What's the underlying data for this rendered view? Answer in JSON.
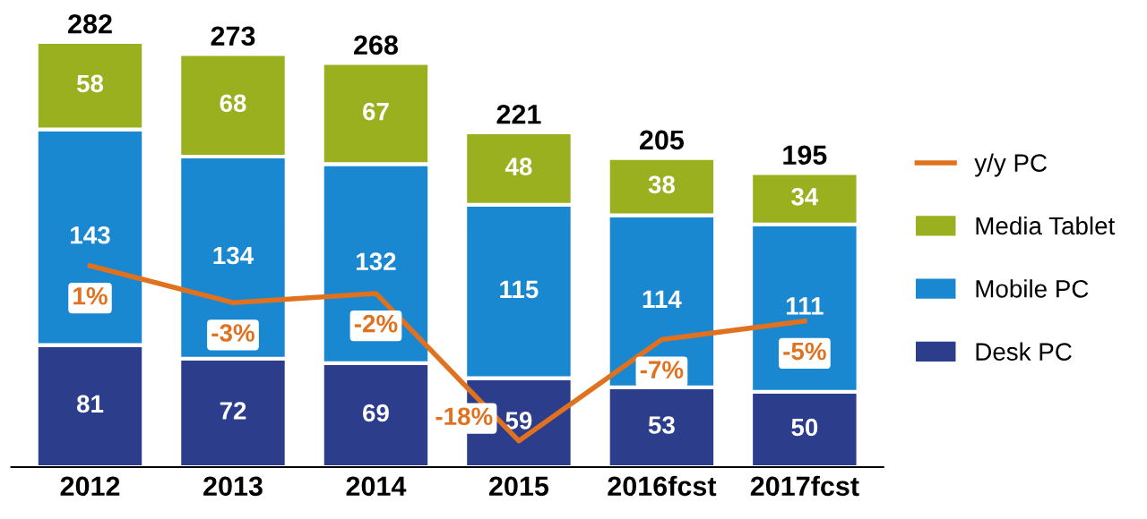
{
  "chart_data": {
    "type": "bar",
    "stacked": true,
    "categories": [
      "2012",
      "2013",
      "2014",
      "2015",
      "2016fcst",
      "2017fcst"
    ],
    "series": [
      {
        "name": "Desk PC",
        "color": "#2b3d8b",
        "values": [
          81,
          72,
          69,
          59,
          53,
          50
        ]
      },
      {
        "name": "Mobile PC",
        "color": "#1a88d0",
        "values": [
          143,
          134,
          132,
          115,
          114,
          111
        ]
      },
      {
        "name": "Media Tablet",
        "color": "#9bb01f",
        "values": [
          58,
          68,
          67,
          48,
          38,
          34
        ]
      },
      {
        "name": "y/y PC",
        "type": "line",
        "axis": "y2",
        "color": "#e0711f",
        "values": [
          1,
          -3,
          -2,
          -18,
          -7,
          -5
        ],
        "value_labels": [
          "1%",
          "-3%",
          "-2%",
          "-18%",
          "-7%",
          "-5%"
        ]
      }
    ],
    "totals": [
      "282",
      "273",
      "268",
      "221",
      "205",
      "195"
    ],
    "data_labels": true,
    "tick_labels": "x",
    "legend": "right",
    "grid": false
  }
}
